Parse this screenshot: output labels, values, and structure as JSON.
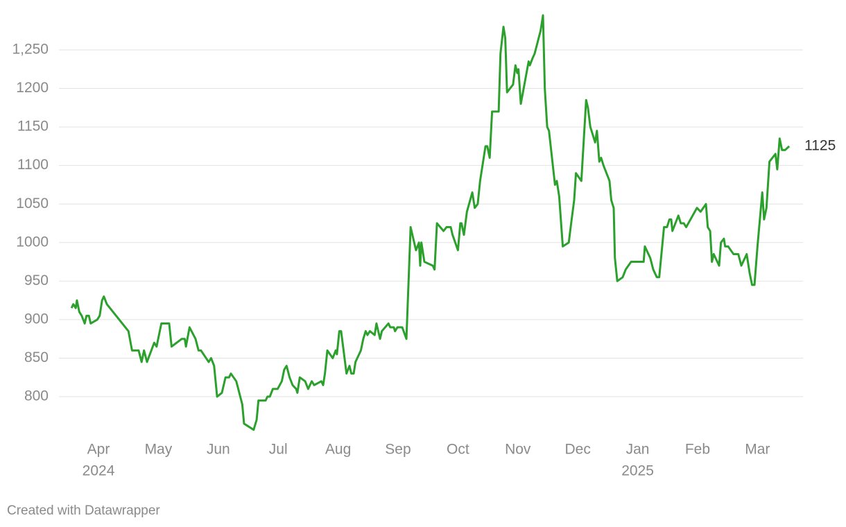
{
  "chart_data": {
    "type": "line",
    "x": [
      3.55,
      3.58,
      3.62,
      3.64,
      3.68,
      3.72,
      3.77,
      3.8,
      3.84,
      3.87,
      3.98,
      4.02,
      4.06,
      4.09,
      4.14,
      4.5,
      4.56,
      4.67,
      4.72,
      4.76,
      4.81,
      4.93,
      4.97,
      5.05,
      5.18,
      5.22,
      5.39,
      5.44,
      5.46,
      5.52,
      5.62,
      5.67,
      5.71,
      5.84,
      5.88,
      5.93,
      5.98,
      6.06,
      6.12,
      6.18,
      6.21,
      6.3,
      6.4,
      6.43,
      6.59,
      6.64,
      6.67,
      6.79,
      6.82,
      6.86,
      6.91,
      6.99,
      7.06,
      7.1,
      7.14,
      7.19,
      7.24,
      7.3,
      7.32,
      7.36,
      7.45,
      7.5,
      7.56,
      7.6,
      7.72,
      7.75,
      7.78,
      7.82,
      7.91,
      7.96,
      7.98,
      8.02,
      8.05,
      8.14,
      8.19,
      8.22,
      8.26,
      8.29,
      8.38,
      8.42,
      8.46,
      8.49,
      8.53,
      8.61,
      8.64,
      8.7,
      8.73,
      8.84,
      8.87,
      8.93,
      8.95,
      8.99,
      9.07,
      9.14,
      9.21,
      9.3,
      9.35,
      9.37,
      9.39,
      9.44,
      9.58,
      9.61,
      9.65,
      9.76,
      9.81,
      9.88,
      9.91,
      10.0,
      10.04,
      10.06,
      10.1,
      10.15,
      10.24,
      10.28,
      10.33,
      10.37,
      10.46,
      10.49,
      10.53,
      10.57,
      10.68,
      10.71,
      10.76,
      10.79,
      10.82,
      10.92,
      10.96,
      10.99,
      11.01,
      11.05,
      11.18,
      11.2,
      11.25,
      11.28,
      11.38,
      11.42,
      11.45,
      11.49,
      11.52,
      11.62,
      11.65,
      11.69,
      11.75,
      11.85,
      11.89,
      11.94,
      11.97,
      12.06,
      12.14,
      12.17,
      12.21,
      12.29,
      12.32,
      12.36,
      12.39,
      12.43,
      12.53,
      12.56,
      12.6,
      12.62,
      12.66,
      12.75,
      12.8,
      12.89,
      13.1,
      13.12,
      13.21,
      13.26,
      13.32,
      13.36,
      13.44,
      13.49,
      13.53,
      13.56,
      13.58,
      13.68,
      13.72,
      13.77,
      13.81,
      13.99,
      14.05,
      14.14,
      14.17,
      14.21,
      14.24,
      14.27,
      14.36,
      14.39,
      14.44,
      14.46,
      14.51,
      14.6,
      14.65,
      14.68,
      14.73,
      14.82,
      14.87,
      14.91,
      14.95,
      15.0,
      15.08,
      15.11,
      15.15,
      15.2,
      15.3,
      15.33,
      15.37,
      15.41,
      15.46,
      15.53
    ],
    "values": [
      915,
      920,
      915,
      925,
      910,
      905,
      895,
      905,
      905,
      895,
      900,
      905,
      925,
      930,
      920,
      885,
      860,
      860,
      845,
      860,
      845,
      870,
      865,
      895,
      895,
      865,
      875,
      875,
      865,
      890,
      875,
      860,
      860,
      845,
      850,
      840,
      800,
      805,
      825,
      825,
      830,
      820,
      790,
      765,
      757,
      770,
      795,
      795,
      800,
      800,
      810,
      810,
      820,
      835,
      840,
      825,
      815,
      810,
      805,
      825,
      820,
      810,
      820,
      815,
      820,
      815,
      830,
      860,
      850,
      860,
      855,
      885,
      885,
      830,
      840,
      830,
      830,
      845,
      860,
      875,
      885,
      880,
      885,
      880,
      895,
      875,
      885,
      895,
      890,
      890,
      885,
      890,
      890,
      875,
      1020,
      990,
      1000,
      970,
      1000,
      975,
      970,
      965,
      1025,
      1015,
      1020,
      1020,
      1010,
      990,
      1025,
      1025,
      1010,
      1040,
      1065,
      1045,
      1050,
      1080,
      1125,
      1125,
      1110,
      1170,
      1170,
      1245,
      1280,
      1265,
      1195,
      1205,
      1230,
      1220,
      1225,
      1180,
      1235,
      1230,
      1240,
      1245,
      1275,
      1295,
      1200,
      1150,
      1145,
      1075,
      1080,
      1060,
      995,
      1000,
      1025,
      1055,
      1090,
      1080,
      1185,
      1175,
      1150,
      1130,
      1145,
      1105,
      1110,
      1100,
      1080,
      1055,
      1045,
      980,
      950,
      955,
      965,
      975,
      975,
      995,
      980,
      965,
      955,
      955,
      1020,
      1020,
      1030,
      1030,
      1015,
      1035,
      1025,
      1025,
      1020,
      1045,
      1040,
      1050,
      1020,
      1015,
      975,
      985,
      970,
      1000,
      1005,
      995,
      995,
      985,
      985,
      985,
      970,
      985,
      960,
      945,
      945,
      995,
      1065,
      1030,
      1045,
      1105,
      1115,
      1095,
      1135,
      1120,
      1120,
      1125
    ],
    "color": "#2ca02c",
    "xlim": [
      3.34,
      15.76
    ],
    "xticks": [
      {
        "value": 4,
        "label": "Apr"
      },
      {
        "value": 5,
        "label": "May"
      },
      {
        "value": 6,
        "label": "Jun"
      },
      {
        "value": 7,
        "label": "Jul"
      },
      {
        "value": 8,
        "label": "Aug"
      },
      {
        "value": 9,
        "label": "Sep"
      },
      {
        "value": 10,
        "label": "Oct"
      },
      {
        "value": 11,
        "label": "Nov"
      },
      {
        "value": 12,
        "label": "Dec"
      },
      {
        "value": 13,
        "label": "Jan"
      },
      {
        "value": 14,
        "label": "Feb"
      },
      {
        "value": 15,
        "label": "Mar"
      }
    ],
    "year_labels": [
      {
        "value": 4,
        "label": "2024"
      },
      {
        "value": 13,
        "label": "2025"
      }
    ],
    "ylim": [
      750,
      1300
    ],
    "yticks": [
      800,
      850,
      900,
      950,
      1000,
      1050,
      1100,
      1150,
      1200,
      {
        "value": 1250,
        "label": "1,250"
      }
    ],
    "grid": true,
    "credit": "Created with Datawrapper"
  }
}
